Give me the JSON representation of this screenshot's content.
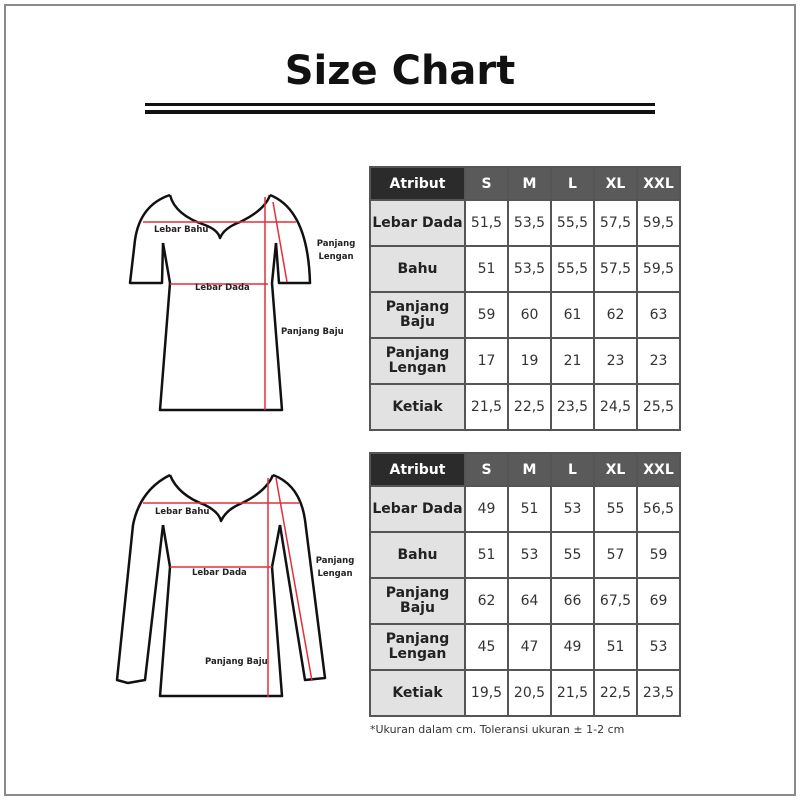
{
  "title": "Size Chart",
  "sizes": [
    "S",
    "M",
    "L",
    "XL",
    "XXL"
  ],
  "header_attr": "Atribut",
  "short_sleeve": {
    "labels": {
      "lebar_bahu": "Lebar Bahu",
      "lebar_dada": "Lebar Dada",
      "panjang_lengan": "Panjang Lengan",
      "panjang_baju": "Panjang Baju"
    },
    "rows": [
      {
        "attr": "Lebar Dada",
        "values": [
          "51,5",
          "53,5",
          "55,5",
          "57,5",
          "59,5"
        ]
      },
      {
        "attr": "Bahu",
        "values": [
          "51",
          "53,5",
          "55,5",
          "57,5",
          "59,5"
        ]
      },
      {
        "attr": "Panjang Baju",
        "values": [
          "59",
          "60",
          "61",
          "62",
          "63"
        ]
      },
      {
        "attr": "Panjang Lengan",
        "values": [
          "17",
          "19",
          "21",
          "23",
          "23"
        ]
      },
      {
        "attr": "Ketiak",
        "values": [
          "21,5",
          "22,5",
          "23,5",
          "24,5",
          "25,5"
        ]
      }
    ]
  },
  "long_sleeve": {
    "labels": {
      "lebar_bahu": "Lebar Bahu",
      "lebar_dada": "Lebar Dada",
      "panjang_lengan": "Panjang Lengan",
      "panjang_baju": "Panjang Baju"
    },
    "rows": [
      {
        "attr": "Lebar Dada",
        "values": [
          "49",
          "51",
          "53",
          "55",
          "56,5"
        ]
      },
      {
        "attr": "Bahu",
        "values": [
          "51",
          "53",
          "55",
          "57",
          "59"
        ]
      },
      {
        "attr": "Panjang Baju",
        "values": [
          "62",
          "64",
          "66",
          "67,5",
          "69"
        ]
      },
      {
        "attr": "Panjang Lengan",
        "values": [
          "45",
          "47",
          "49",
          "51",
          "53"
        ]
      },
      {
        "attr": "Ketiak",
        "values": [
          "19,5",
          "20,5",
          "21,5",
          "22,5",
          "23,5"
        ]
      }
    ]
  },
  "footnote": "*Ukuran dalam cm. Toleransi ukuran ± 1-2 cm",
  "colors": {
    "header_dark": "#2b2b2b",
    "header_size": "#5a5a5a",
    "attr_cell": "#e2e2e2",
    "measure_line": "#e0303c"
  }
}
